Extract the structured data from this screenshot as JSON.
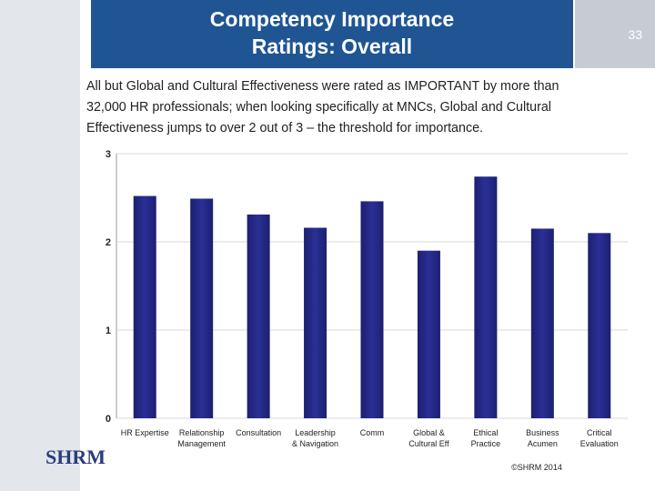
{
  "header": {
    "title_lines": [
      "Competency Importance",
      "Ratings:  Overall"
    ],
    "page_number": "33"
  },
  "body_text": "All but Global and Cultural Effectiveness were rated as IMPORTANT by more than 32,000 HR professionals; when looking specifically at MNCs, Global and Cultural Effectiveness jumps to over 2 out of 3 – the threshold for importance.",
  "chart_data": {
    "type": "bar",
    "categories": [
      "HR Expertise",
      "Relationship\nManagement",
      "Consultation",
      "Leadership\n& Navigation",
      "Comm",
      "Global &\nCultural Eff",
      "Ethical\nPractice",
      "Business\nAcumen",
      "Critical\nEvaluation"
    ],
    "values": [
      2.52,
      2.49,
      2.31,
      2.16,
      2.46,
      1.9,
      2.74,
      2.15,
      2.1
    ],
    "color": "#2a2f96",
    "ylim": [
      0,
      3
    ],
    "yticks": [
      0,
      1,
      2,
      3
    ],
    "grid": true
  },
  "footer": {
    "copyright": "©SHRM 2014",
    "logo": "SHRM"
  }
}
